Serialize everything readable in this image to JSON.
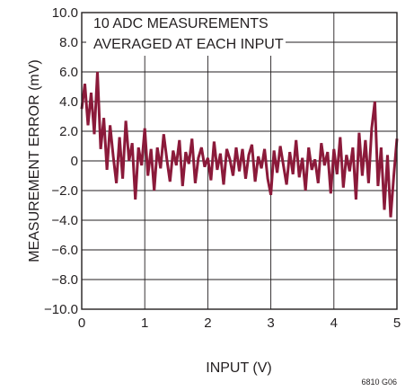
{
  "chart_data": {
    "type": "line",
    "xlabel": "INPUT (V)",
    "ylabel": "MEASUREMENT ERROR (mV)",
    "xlim": [
      0,
      5
    ],
    "ylim": [
      -10,
      10
    ],
    "x_ticks": [
      "0",
      "1",
      "2",
      "3",
      "4",
      "5"
    ],
    "y_ticks": [
      "10.0",
      "8.0",
      "6.0",
      "4.0",
      "2.0",
      "0",
      "−2.0",
      "−4.0",
      "−6.0",
      "−8.0",
      "−10.0"
    ],
    "grid": true,
    "annotation": [
      "10 ADC MEASUREMENTS",
      "AVERAGED AT EACH INPUT"
    ],
    "figure_code": "6810 G06",
    "line_color": "#8b1a3a",
    "series": [
      {
        "x": [
          0.0,
          0.05,
          0.1,
          0.15,
          0.2,
          0.25,
          0.3,
          0.35,
          0.4,
          0.45,
          0.5,
          0.55,
          0.6,
          0.65,
          0.7,
          0.75,
          0.8,
          0.85,
          0.9,
          0.95,
          1.0,
          1.05,
          1.1,
          1.15,
          1.2,
          1.25,
          1.3,
          1.35,
          1.4,
          1.45,
          1.5,
          1.55,
          1.6,
          1.65,
          1.7,
          1.75,
          1.8,
          1.85,
          1.9,
          1.95,
          2.0,
          2.05,
          2.1,
          2.15,
          2.2,
          2.25,
          2.3,
          2.35,
          2.4,
          2.45,
          2.5,
          2.55,
          2.6,
          2.65,
          2.7,
          2.75,
          2.8,
          2.85,
          2.9,
          2.95,
          3.0,
          3.05,
          3.1,
          3.15,
          3.2,
          3.25,
          3.3,
          3.35,
          3.4,
          3.45,
          3.5,
          3.55,
          3.6,
          3.65,
          3.7,
          3.75,
          3.8,
          3.85,
          3.9,
          3.95,
          4.0,
          4.05,
          4.1,
          4.15,
          4.2,
          4.25,
          4.3,
          4.35,
          4.4,
          4.45,
          4.5,
          4.55,
          4.6,
          4.65,
          4.7,
          4.75,
          4.8,
          4.85,
          4.9,
          4.95,
          5.0
        ],
        "y": [
          3.5,
          5.2,
          2.4,
          4.6,
          1.8,
          6.0,
          0.8,
          2.9,
          -0.6,
          2.4,
          0.3,
          -1.5,
          1.6,
          -1.2,
          2.7,
          0.0,
          1.2,
          -2.6,
          0.9,
          -0.3,
          2.2,
          -1.0,
          0.8,
          -2.0,
          0.9,
          -0.5,
          1.8,
          0.1,
          -1.4,
          0.7,
          -0.3,
          1.4,
          -1.7,
          0.6,
          -0.2,
          1.5,
          -1.5,
          0.2,
          0.9,
          -0.4,
          0.2,
          -1.3,
          1.3,
          -0.6,
          0.5,
          -1.6,
          0.8,
          0.1,
          -1.0,
          0.9,
          -0.7,
          0.8,
          -1.2,
          0.4,
          1.1,
          -1.4,
          0.3,
          -0.5,
          0.8,
          -1.2,
          -2.3,
          0.7,
          -0.8,
          1.0,
          -0.3,
          -1.6,
          0.6,
          -0.9,
          1.4,
          -1.1,
          0.2,
          -2.0,
          0.9,
          -0.6,
          0.1,
          -1.5,
          1.2,
          -0.3,
          0.6,
          -2.2,
          0.8,
          -0.9,
          1.6,
          -1.8,
          0.4,
          -0.7,
          0.9,
          -2.6,
          1.9,
          -1.0,
          1.4,
          -1.5,
          2.2,
          4.0,
          -1.7,
          0.9,
          -3.3,
          0.4,
          -3.8,
          -1.0,
          1.5
        ]
      }
    ]
  }
}
